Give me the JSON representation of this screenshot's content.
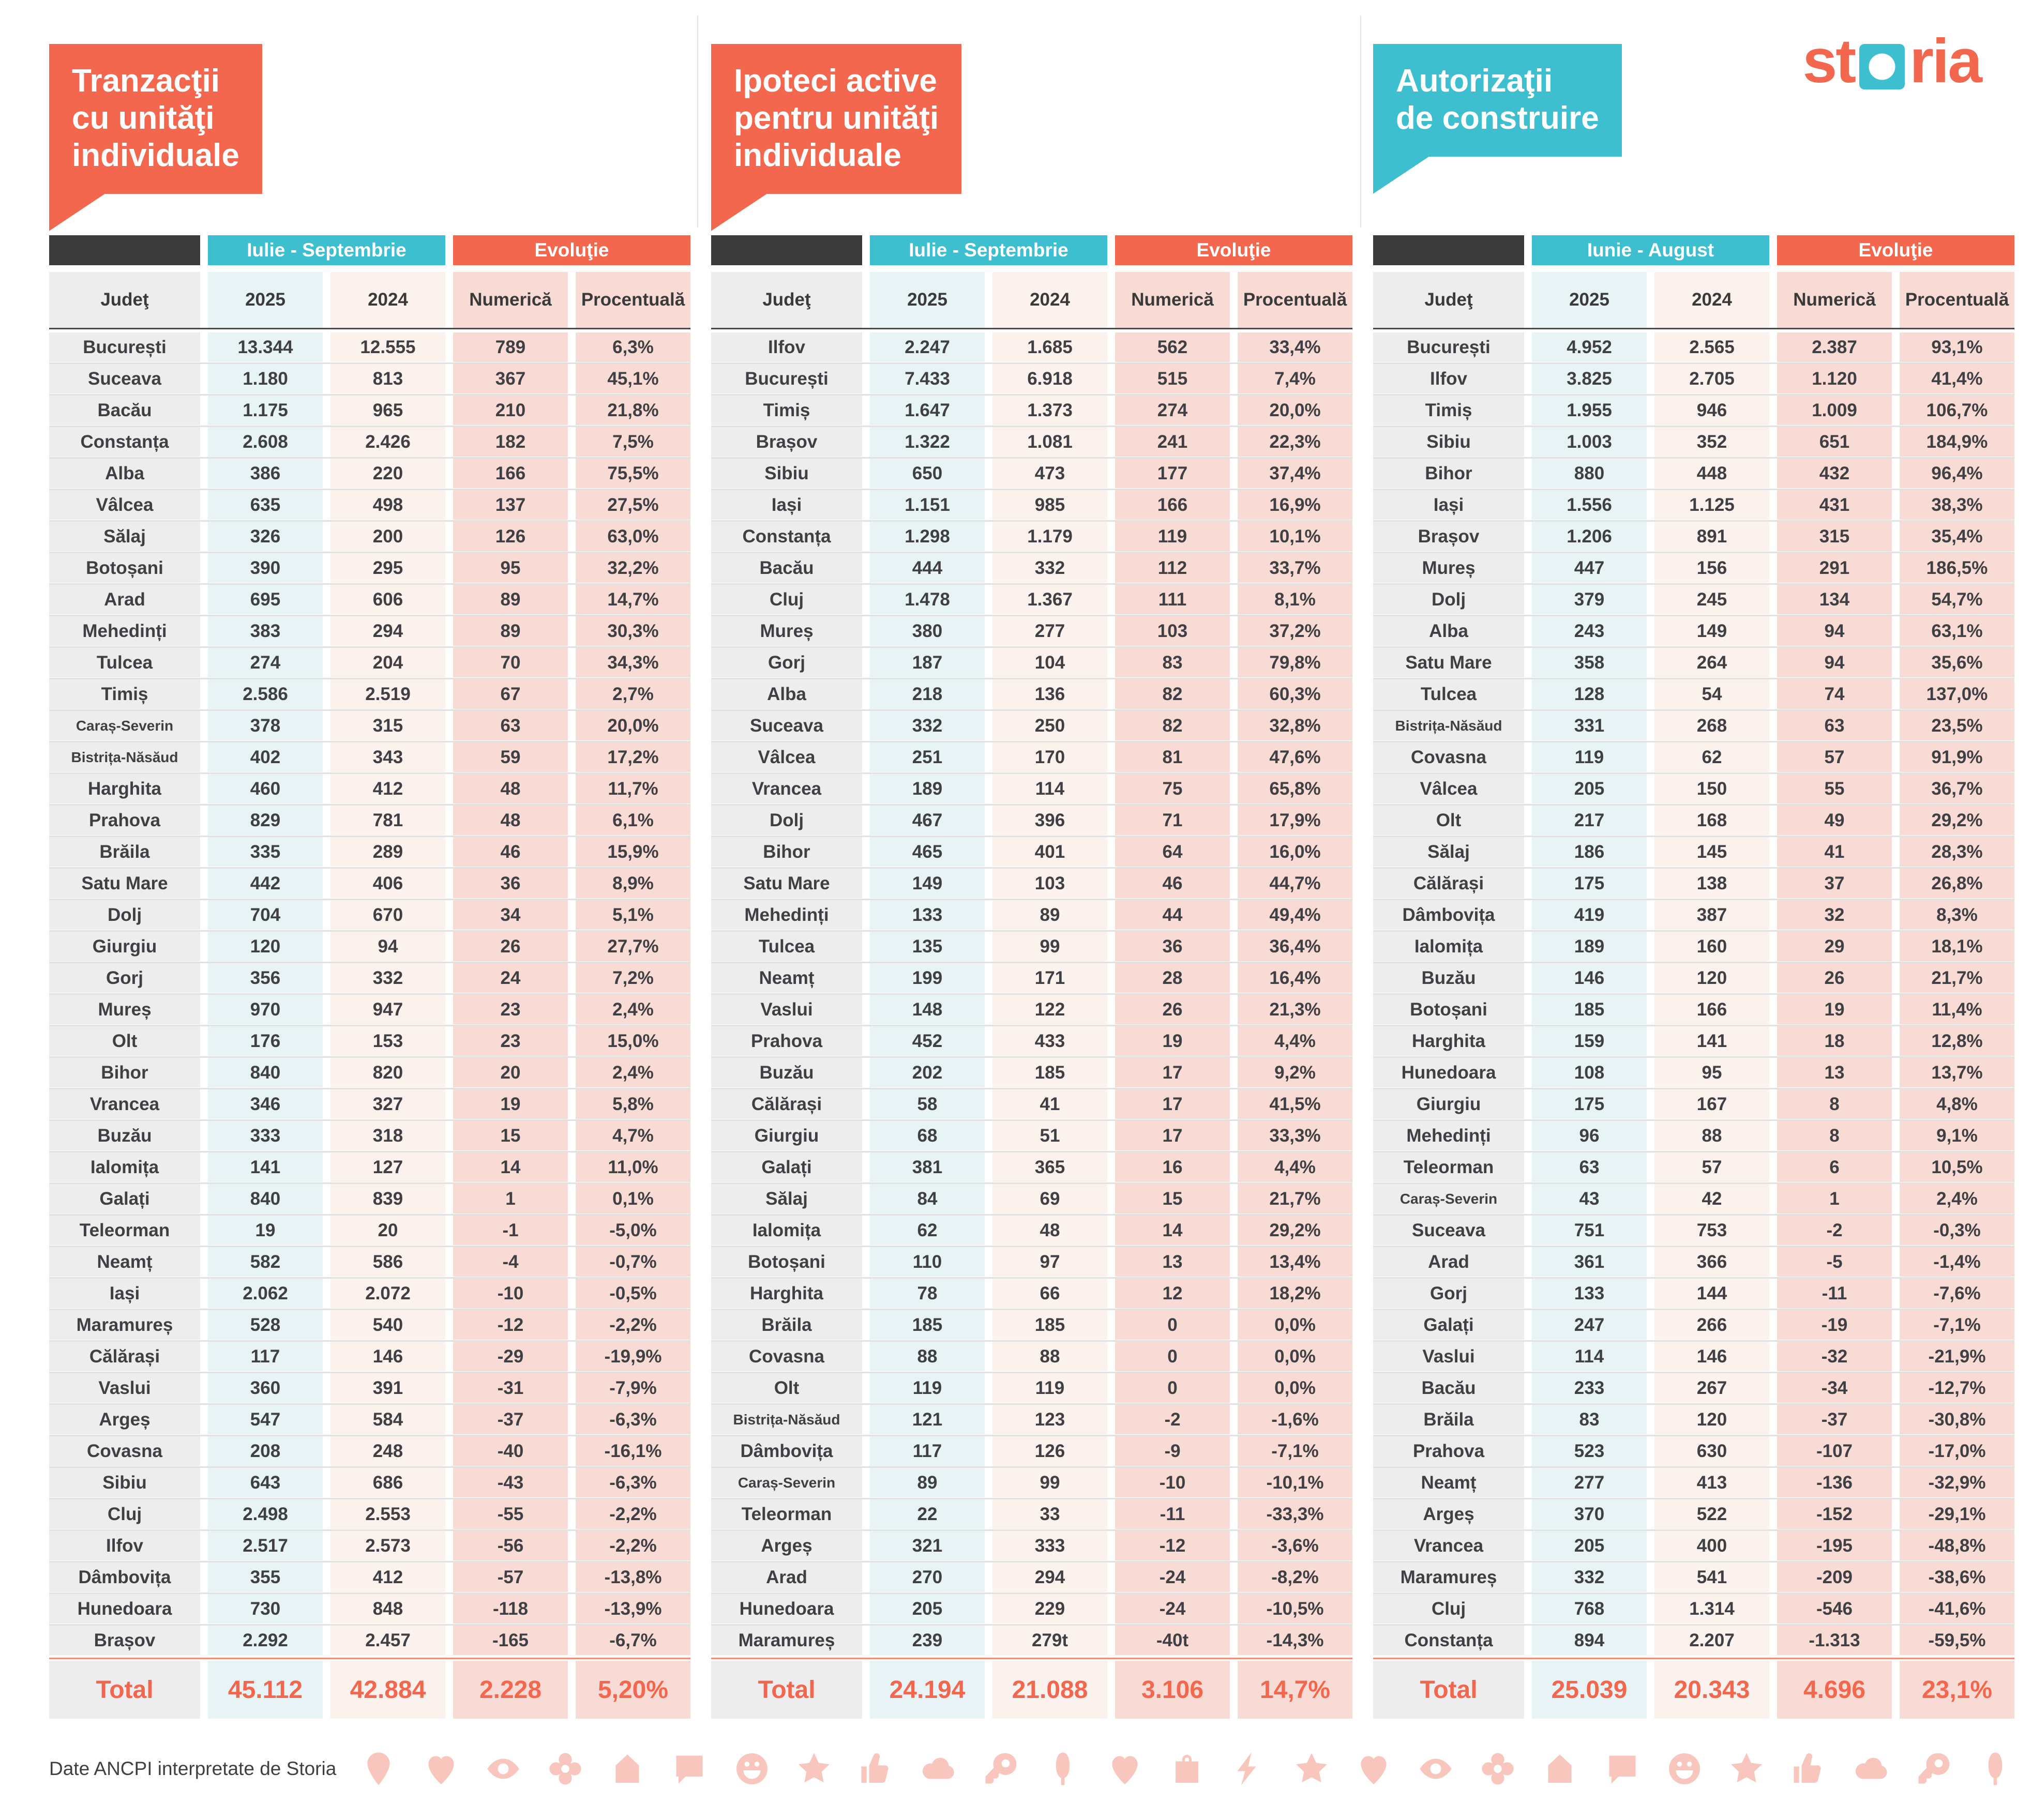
{
  "logo": {
    "pre": "st",
    "post": "ria",
    "brand_coral": "#F2674D",
    "brand_teal": "#3EBFCF"
  },
  "footer": {
    "source_text": "Date ANCPI interpretate de Storia",
    "icon_color": "#F8C6BC",
    "icons": [
      "pin",
      "heart",
      "eye",
      "flower",
      "house",
      "chat",
      "smiley",
      "star",
      "thumb",
      "cloud",
      "key",
      "tree",
      "heart",
      "bag",
      "bolt",
      "star",
      "heart",
      "eye",
      "flower",
      "house",
      "chat",
      "smiley",
      "star",
      "thumb",
      "cloud",
      "key",
      "tree"
    ]
  },
  "chart_data": [
    {
      "type": "table",
      "title": "Tranzacţii\ncu unităţi\nindividuale",
      "accent": "#F2674D",
      "period_label": "Iulie - Septembrie",
      "evolution_label": "Evoluţie",
      "columns": [
        "Judeţ",
        "2025",
        "2024",
        "Numerică",
        "Procentuală"
      ],
      "rows": [
        [
          "București",
          "13.344",
          "12.555",
          "789",
          "6,3%"
        ],
        [
          "Suceava",
          "1.180",
          "813",
          "367",
          "45,1%"
        ],
        [
          "Bacău",
          "1.175",
          "965",
          "210",
          "21,8%"
        ],
        [
          "Constanța",
          "2.608",
          "2.426",
          "182",
          "7,5%"
        ],
        [
          "Alba",
          "386",
          "220",
          "166",
          "75,5%"
        ],
        [
          "Vâlcea",
          "635",
          "498",
          "137",
          "27,5%"
        ],
        [
          "Sălaj",
          "326",
          "200",
          "126",
          "63,0%"
        ],
        [
          "Botoșani",
          "390",
          "295",
          "95",
          "32,2%"
        ],
        [
          "Arad",
          "695",
          "606",
          "89",
          "14,7%"
        ],
        [
          "Mehedinți",
          "383",
          "294",
          "89",
          "30,3%"
        ],
        [
          "Tulcea",
          "274",
          "204",
          "70",
          "34,3%"
        ],
        [
          "Timiș",
          "2.586",
          "2.519",
          "67",
          "2,7%"
        ],
        [
          "Caraș-Severin",
          "378",
          "315",
          "63",
          "20,0%"
        ],
        [
          "Bistrița-Năsăud",
          "402",
          "343",
          "59",
          "17,2%"
        ],
        [
          "Harghita",
          "460",
          "412",
          "48",
          "11,7%"
        ],
        [
          "Prahova",
          "829",
          "781",
          "48",
          "6,1%"
        ],
        [
          "Brăila",
          "335",
          "289",
          "46",
          "15,9%"
        ],
        [
          "Satu Mare",
          "442",
          "406",
          "36",
          "8,9%"
        ],
        [
          "Dolj",
          "704",
          "670",
          "34",
          "5,1%"
        ],
        [
          "Giurgiu",
          "120",
          "94",
          "26",
          "27,7%"
        ],
        [
          "Gorj",
          "356",
          "332",
          "24",
          "7,2%"
        ],
        [
          "Mureș",
          "970",
          "947",
          "23",
          "2,4%"
        ],
        [
          "Olt",
          "176",
          "153",
          "23",
          "15,0%"
        ],
        [
          "Bihor",
          "840",
          "820",
          "20",
          "2,4%"
        ],
        [
          "Vrancea",
          "346",
          "327",
          "19",
          "5,8%"
        ],
        [
          "Buzău",
          "333",
          "318",
          "15",
          "4,7%"
        ],
        [
          "Ialomița",
          "141",
          "127",
          "14",
          "11,0%"
        ],
        [
          "Galați",
          "840",
          "839",
          "1",
          "0,1%"
        ],
        [
          "Teleorman",
          "19",
          "20",
          "-1",
          "-5,0%"
        ],
        [
          "Neamț",
          "582",
          "586",
          "-4",
          "-0,7%"
        ],
        [
          "Iași",
          "2.062",
          "2.072",
          "-10",
          "-0,5%"
        ],
        [
          "Maramureș",
          "528",
          "540",
          "-12",
          "-2,2%"
        ],
        [
          "Călărași",
          "117",
          "146",
          "-29",
          "-19,9%"
        ],
        [
          "Vaslui",
          "360",
          "391",
          "-31",
          "-7,9%"
        ],
        [
          "Argeș",
          "547",
          "584",
          "-37",
          "-6,3%"
        ],
        [
          "Covasna",
          "208",
          "248",
          "-40",
          "-16,1%"
        ],
        [
          "Sibiu",
          "643",
          "686",
          "-43",
          "-6,3%"
        ],
        [
          "Cluj",
          "2.498",
          "2.553",
          "-55",
          "-2,2%"
        ],
        [
          "Ilfov",
          "2.517",
          "2.573",
          "-56",
          "-2,2%"
        ],
        [
          "Dâmbovița",
          "355",
          "412",
          "-57",
          "-13,8%"
        ],
        [
          "Hunedoara",
          "730",
          "848",
          "-118",
          "-13,9%"
        ],
        [
          "Brașov",
          "2.292",
          "2.457",
          "-165",
          "-6,7%"
        ]
      ],
      "total": [
        "Total",
        "45.112",
        "42.884",
        "2.228",
        "5,20%"
      ]
    },
    {
      "type": "table",
      "title": "Ipoteci active\npentru unităţi\nindividuale",
      "accent": "#F2674D",
      "period_label": "Iulie - Septembrie",
      "evolution_label": "Evoluţie",
      "columns": [
        "Judeţ",
        "2025",
        "2024",
        "Numerică",
        "Procentuală"
      ],
      "rows": [
        [
          "Ilfov",
          "2.247",
          "1.685",
          "562",
          "33,4%"
        ],
        [
          "București",
          "7.433",
          "6.918",
          "515",
          "7,4%"
        ],
        [
          "Timiș",
          "1.647",
          "1.373",
          "274",
          "20,0%"
        ],
        [
          "Brașov",
          "1.322",
          "1.081",
          "241",
          "22,3%"
        ],
        [
          "Sibiu",
          "650",
          "473",
          "177",
          "37,4%"
        ],
        [
          "Iași",
          "1.151",
          "985",
          "166",
          "16,9%"
        ],
        [
          "Constanța",
          "1.298",
          "1.179",
          "119",
          "10,1%"
        ],
        [
          "Bacău",
          "444",
          "332",
          "112",
          "33,7%"
        ],
        [
          "Cluj",
          "1.478",
          "1.367",
          "111",
          "8,1%"
        ],
        [
          "Mureș",
          "380",
          "277",
          "103",
          "37,2%"
        ],
        [
          "Gorj",
          "187",
          "104",
          "83",
          "79,8%"
        ],
        [
          "Alba",
          "218",
          "136",
          "82",
          "60,3%"
        ],
        [
          "Suceava",
          "332",
          "250",
          "82",
          "32,8%"
        ],
        [
          "Vâlcea",
          "251",
          "170",
          "81",
          "47,6%"
        ],
        [
          "Vrancea",
          "189",
          "114",
          "75",
          "65,8%"
        ],
        [
          "Dolj",
          "467",
          "396",
          "71",
          "17,9%"
        ],
        [
          "Bihor",
          "465",
          "401",
          "64",
          "16,0%"
        ],
        [
          "Satu Mare",
          "149",
          "103",
          "46",
          "44,7%"
        ],
        [
          "Mehedinți",
          "133",
          "89",
          "44",
          "49,4%"
        ],
        [
          "Tulcea",
          "135",
          "99",
          "36",
          "36,4%"
        ],
        [
          "Neamț",
          "199",
          "171",
          "28",
          "16,4%"
        ],
        [
          "Vaslui",
          "148",
          "122",
          "26",
          "21,3%"
        ],
        [
          "Prahova",
          "452",
          "433",
          "19",
          "4,4%"
        ],
        [
          "Buzău",
          "202",
          "185",
          "17",
          "9,2%"
        ],
        [
          "Călărași",
          "58",
          "41",
          "17",
          "41,5%"
        ],
        [
          "Giurgiu",
          "68",
          "51",
          "17",
          "33,3%"
        ],
        [
          "Galați",
          "381",
          "365",
          "16",
          "4,4%"
        ],
        [
          "Sălaj",
          "84",
          "69",
          "15",
          "21,7%"
        ],
        [
          "Ialomița",
          "62",
          "48",
          "14",
          "29,2%"
        ],
        [
          "Botoșani",
          "110",
          "97",
          "13",
          "13,4%"
        ],
        [
          "Harghita",
          "78",
          "66",
          "12",
          "18,2%"
        ],
        [
          "Brăila",
          "185",
          "185",
          "0",
          "0,0%"
        ],
        [
          "Covasna",
          "88",
          "88",
          "0",
          "0,0%"
        ],
        [
          "Olt",
          "119",
          "119",
          "0",
          "0,0%"
        ],
        [
          "Bistrița-Năsăud",
          "121",
          "123",
          "-2",
          "-1,6%"
        ],
        [
          "Dâmbovița",
          "117",
          "126",
          "-9",
          "-7,1%"
        ],
        [
          "Caraș-Severin",
          "89",
          "99",
          "-10",
          "-10,1%"
        ],
        [
          "Teleorman",
          "22",
          "33",
          "-11",
          "-33,3%"
        ],
        [
          "Argeș",
          "321",
          "333",
          "-12",
          "-3,6%"
        ],
        [
          "Arad",
          "270",
          "294",
          "-24",
          "-8,2%"
        ],
        [
          "Hunedoara",
          "205",
          "229",
          "-24",
          "-10,5%"
        ],
        [
          "Maramureș",
          "239",
          "279t",
          "-40t",
          "-14,3%"
        ]
      ],
      "total": [
        "Total",
        "24.194",
        "21.088",
        "3.106",
        "14,7%"
      ]
    },
    {
      "type": "table",
      "title": "Autorizaţii\nde construire",
      "accent": "#3EBFCF",
      "period_label": "Iunie - August",
      "evolution_label": "Evoluţie",
      "columns": [
        "Judeţ",
        "2025",
        "2024",
        "Numerică",
        "Procentuală"
      ],
      "rows": [
        [
          "București",
          "4.952",
          "2.565",
          "2.387",
          "93,1%"
        ],
        [
          "Ilfov",
          "3.825",
          "2.705",
          "1.120",
          "41,4%"
        ],
        [
          "Timiș",
          "1.955",
          "946",
          "1.009",
          "106,7%"
        ],
        [
          "Sibiu",
          "1.003",
          "352",
          "651",
          "184,9%"
        ],
        [
          "Bihor",
          "880",
          "448",
          "432",
          "96,4%"
        ],
        [
          "Iași",
          "1.556",
          "1.125",
          "431",
          "38,3%"
        ],
        [
          "Brașov",
          "1.206",
          "891",
          "315",
          "35,4%"
        ],
        [
          "Mureș",
          "447",
          "156",
          "291",
          "186,5%"
        ],
        [
          "Dolj",
          "379",
          "245",
          "134",
          "54,7%"
        ],
        [
          "Alba",
          "243",
          "149",
          "94",
          "63,1%"
        ],
        [
          "Satu Mare",
          "358",
          "264",
          "94",
          "35,6%"
        ],
        [
          "Tulcea",
          "128",
          "54",
          "74",
          "137,0%"
        ],
        [
          "Bistrița-Năsăud",
          "331",
          "268",
          "63",
          "23,5%"
        ],
        [
          "Covasna",
          "119",
          "62",
          "57",
          "91,9%"
        ],
        [
          "Vâlcea",
          "205",
          "150",
          "55",
          "36,7%"
        ],
        [
          "Olt",
          "217",
          "168",
          "49",
          "29,2%"
        ],
        [
          "Sălaj",
          "186",
          "145",
          "41",
          "28,3%"
        ],
        [
          "Călărași",
          "175",
          "138",
          "37",
          "26,8%"
        ],
        [
          "Dâmbovița",
          "419",
          "387",
          "32",
          "8,3%"
        ],
        [
          "Ialomița",
          "189",
          "160",
          "29",
          "18,1%"
        ],
        [
          "Buzău",
          "146",
          "120",
          "26",
          "21,7%"
        ],
        [
          "Botoșani",
          "185",
          "166",
          "19",
          "11,4%"
        ],
        [
          "Harghita",
          "159",
          "141",
          "18",
          "12,8%"
        ],
        [
          "Hunedoara",
          "108",
          "95",
          "13",
          "13,7%"
        ],
        [
          "Giurgiu",
          "175",
          "167",
          "8",
          "4,8%"
        ],
        [
          "Mehedinți",
          "96",
          "88",
          "8",
          "9,1%"
        ],
        [
          "Teleorman",
          "63",
          "57",
          "6",
          "10,5%"
        ],
        [
          "Caraș-Severin",
          "43",
          "42",
          "1",
          "2,4%"
        ],
        [
          "Suceava",
          "751",
          "753",
          "-2",
          "-0,3%"
        ],
        [
          "Arad",
          "361",
          "366",
          "-5",
          "-1,4%"
        ],
        [
          "Gorj",
          "133",
          "144",
          "-11",
          "-7,6%"
        ],
        [
          "Galați",
          "247",
          "266",
          "-19",
          "-7,1%"
        ],
        [
          "Vaslui",
          "114",
          "146",
          "-32",
          "-21,9%"
        ],
        [
          "Bacău",
          "233",
          "267",
          "-34",
          "-12,7%"
        ],
        [
          "Brăila",
          "83",
          "120",
          "-37",
          "-30,8%"
        ],
        [
          "Prahova",
          "523",
          "630",
          "-107",
          "-17,0%"
        ],
        [
          "Neamț",
          "277",
          "413",
          "-136",
          "-32,9%"
        ],
        [
          "Argeș",
          "370",
          "522",
          "-152",
          "-29,1%"
        ],
        [
          "Vrancea",
          "205",
          "400",
          "-195",
          "-48,8%"
        ],
        [
          "Maramureș",
          "332",
          "541",
          "-209",
          "-38,6%"
        ],
        [
          "Cluj",
          "768",
          "1.314",
          "-546",
          "-41,6%"
        ],
        [
          "Constanța",
          "894",
          "2.207",
          "-1.313",
          "-59,5%"
        ]
      ],
      "total": [
        "Total",
        "25.039",
        "20.343",
        "4.696",
        "23,1%"
      ]
    }
  ]
}
